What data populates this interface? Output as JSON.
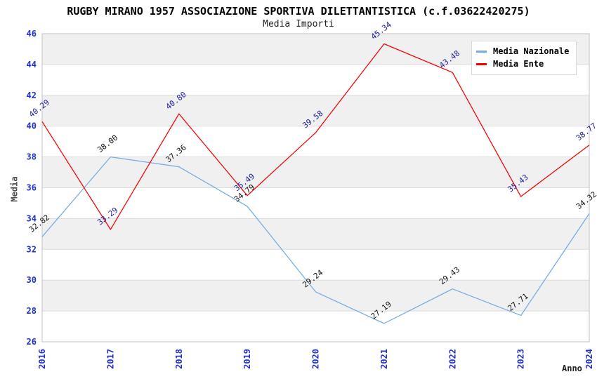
{
  "chart_data": {
    "type": "line",
    "title": "RUGBY MIRANO 1957 ASSOCIAZIONE SPORTIVA DILETTANTISTICA (c.f.03622420275)",
    "subtitle": "Media Importi",
    "xlabel": "Anno",
    "ylabel": "Media",
    "x": [
      "2016",
      "2017",
      "2018",
      "2019",
      "2020",
      "2021",
      "2022",
      "2023",
      "2024"
    ],
    "ylim": [
      26,
      46
    ],
    "ytick_step": 2,
    "grid": true,
    "legend_position": "top-right",
    "series": [
      {
        "name": "Media Nazionale",
        "color": "#74ABE2",
        "label_color": "#111111",
        "values": [
          32.82,
          38.0,
          37.36,
          34.79,
          29.24,
          27.19,
          29.43,
          27.71,
          34.32
        ],
        "labels": [
          "32.82",
          "38.00",
          "37.36",
          "34.79",
          "29.24",
          "27.19",
          "29.43",
          "27.71",
          "34.32"
        ]
      },
      {
        "name": "Media Ente",
        "color": "#F60000",
        "label_color": "#1C1C9E",
        "values": [
          40.29,
          33.29,
          40.8,
          35.49,
          39.58,
          45.34,
          43.48,
          35.43,
          38.77
        ],
        "labels": [
          "40.29",
          "33.29",
          "40.80",
          "35.49",
          "39.58",
          "45.34",
          "43.48",
          "35.43",
          "38.77"
        ]
      }
    ],
    "colors": {
      "tick_label": "#2233CC",
      "axis_title": "#4a4a4a",
      "band": "#F0F0F0",
      "grid_line": "#DCDCDC",
      "plot_border": "#C0C0C0",
      "background": "#FFFFFF",
      "title_text": "#000000",
      "legend_border": "#D9D9D9"
    }
  }
}
